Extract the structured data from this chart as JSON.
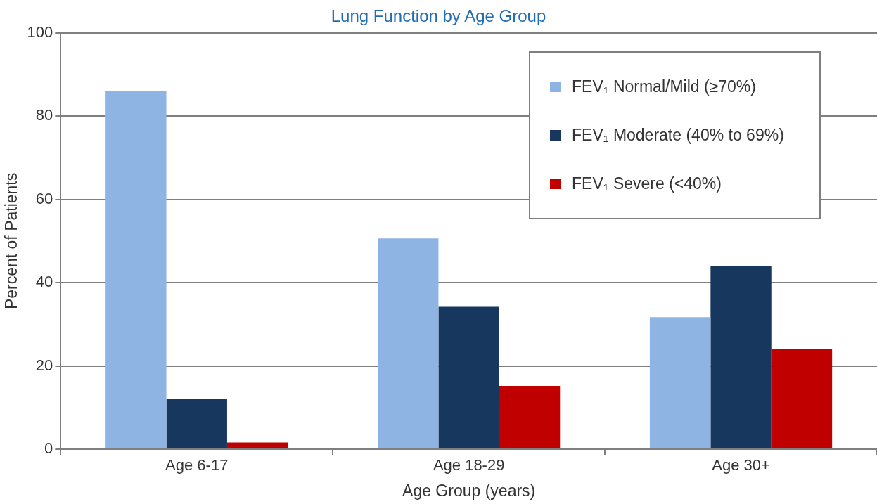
{
  "chart_data": {
    "type": "bar",
    "title": "Lung Function by Age Group",
    "xlabel": "Age Group (years)",
    "ylabel": "Percent of Patients",
    "categories": [
      "Age 6-17",
      "Age 18-29",
      "Age 30+"
    ],
    "series": [
      {
        "name": "FEV₁ Normal/Mild (≥70%)",
        "color": "#8eb4e3",
        "values": [
          86,
          50.6,
          31.7
        ]
      },
      {
        "name": "FEV₁ Moderate (40% to 69%)",
        "color": "#17375e",
        "values": [
          12,
          34.2,
          43.9
        ]
      },
      {
        "name": "FEV₁ Severe (<40%)",
        "color": "#c00000",
        "values": [
          1.6,
          15.2,
          24
        ]
      }
    ],
    "ylim": [
      0,
      100
    ],
    "yticks": [
      0,
      20,
      40,
      60,
      80,
      100
    ],
    "grid": "y",
    "legend": "top right"
  }
}
